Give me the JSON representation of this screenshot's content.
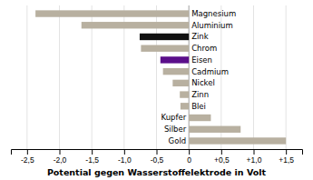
{
  "chart_data": {
    "type": "bar",
    "orientation": "horizontal",
    "categories": [
      "Magnesium",
      "Aluminium",
      "Zink",
      "Chrom",
      "Eisen",
      "Cadmium",
      "Nickel",
      "Zinn",
      "Blei",
      "Kupfer",
      "Silber",
      "Gold"
    ],
    "values": [
      -2.37,
      -1.66,
      -0.76,
      -0.74,
      -0.44,
      -0.4,
      -0.25,
      -0.14,
      -0.13,
      0.34,
      0.8,
      1.5
    ],
    "colors": [
      "#b8b0a0",
      "#b8b0a0",
      "#111111",
      "#b8b0a0",
      "#5b0f8a",
      "#b8b0a0",
      "#b8b0a0",
      "#b8b0a0",
      "#b8b0a0",
      "#b8b0a0",
      "#b8b0a0",
      "#b8b0a0"
    ],
    "xlabel": "Potential gegen Wasserstoffelektrode in Volt",
    "xlim": [
      -2.75,
      1.75
    ],
    "xticks": [
      {
        "value": -2.5,
        "label": "-2,5"
      },
      {
        "value": -2.0,
        "label": "-2,0"
      },
      {
        "value": -1.5,
        "label": "-1,5"
      },
      {
        "value": -1.0,
        "label": "-1,0"
      },
      {
        "value": -0.5,
        "label": "-0,5"
      },
      0,
      {
        "value": 0.5,
        "label": "+0,5"
      },
      {
        "value": 1.0,
        "label": "+1,0"
      },
      {
        "value": 1.5,
        "label": "+1,5"
      }
    ],
    "grid": true
  }
}
